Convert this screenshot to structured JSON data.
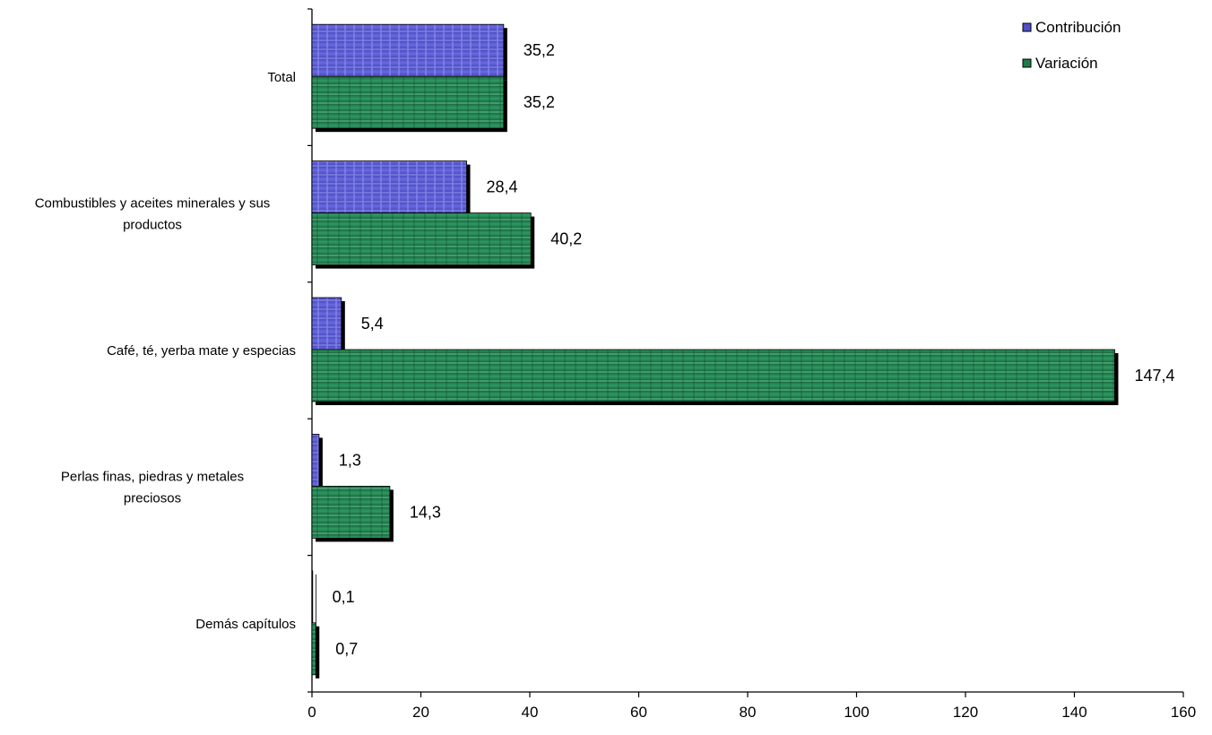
{
  "chart_data": {
    "type": "bar",
    "orientation": "horizontal",
    "categories": [
      [
        "Total"
      ],
      [
        "Combustibles y aceites minerales y sus",
        "productos"
      ],
      [
        "Café, té, yerba mate y especias"
      ],
      [
        "Perlas finas, piedras y metales",
        "preciosos"
      ],
      [
        "Demás capítulos"
      ]
    ],
    "series": [
      {
        "name": "Contribución",
        "values": [
          35.2,
          28.4,
          5.4,
          1.3,
          0.1
        ],
        "labels": [
          "35,2",
          "28,4",
          "5,4",
          "1,3",
          "0,1"
        ],
        "color": "#5050c8"
      },
      {
        "name": "Variación",
        "values": [
          35.2,
          40.2,
          147.4,
          14.3,
          0.7
        ],
        "labels": [
          "35,2",
          "40,2",
          "147,4",
          "14,3",
          "0,7"
        ],
        "color": "#1e7a4a"
      }
    ],
    "xlim": [
      0,
      160
    ],
    "xticks": [
      0,
      20,
      40,
      60,
      80,
      100,
      120,
      140,
      160
    ],
    "title": "",
    "xlabel": "",
    "ylabel": "",
    "grid": false,
    "legend_position": "top-right"
  }
}
